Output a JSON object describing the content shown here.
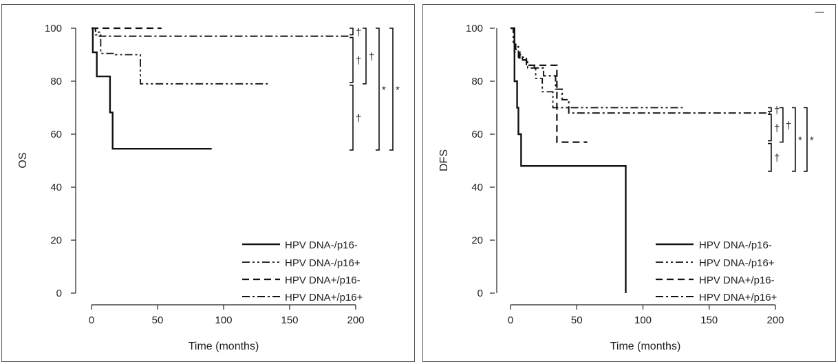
{
  "chart_data": [
    {
      "type": "line",
      "subtype": "kaplan-meier",
      "title": "",
      "xlabel": "Time (months)",
      "ylabel": "OS",
      "xlim": [
        0,
        200
      ],
      "ylim": [
        0,
        100
      ],
      "xticks": [
        0,
        50,
        100,
        150,
        200
      ],
      "yticks": [
        0,
        20,
        40,
        60,
        80,
        100
      ],
      "series": [
        {
          "name": "HPV DNA-/p16-",
          "style": "solid",
          "x": [
            0,
            1,
            1,
            4,
            4,
            14,
            14,
            16,
            16,
            91
          ],
          "y": [
            100,
            100,
            90.9,
            90.9,
            81.8,
            81.8,
            68.2,
            68.2,
            54.5,
            54.5
          ]
        },
        {
          "name": "HPV DNA-/p16+",
          "style": "dashdotdot",
          "x": [
            0,
            3,
            3,
            7,
            7,
            18,
            18,
            37,
            37,
            135
          ],
          "y": [
            100,
            100,
            97.5,
            97.5,
            90.5,
            90.5,
            90,
            90,
            79,
            79
          ]
        },
        {
          "name": "HPV DNA+/p16-",
          "style": "dashed",
          "x": [
            0,
            53
          ],
          "y": [
            100,
            100
          ]
        },
        {
          "name": "HPV DNA+/p16+",
          "style": "dashdot",
          "x": [
            0,
            3,
            3,
            6,
            6,
            196
          ],
          "y": [
            100,
            100,
            98.5,
            98.5,
            97,
            97
          ]
        }
      ],
      "brackets": [
        {
          "from": 100,
          "to": 97,
          "label": "†"
        },
        {
          "from": 97,
          "to": 79,
          "label": "†"
        },
        {
          "from": 79,
          "to": 54,
          "label": "†"
        },
        {
          "from": 100,
          "to": 79,
          "label": "†"
        },
        {
          "from": 100,
          "to": 54,
          "label": "*"
        },
        {
          "from": 100,
          "to": 54,
          "label": "*"
        }
      ]
    },
    {
      "type": "line",
      "subtype": "kaplan-meier",
      "title": "",
      "xlabel": "Time (months)",
      "ylabel": "DFS",
      "xlim": [
        0,
        200
      ],
      "ylim": [
        0,
        100
      ],
      "xticks": [
        0,
        50,
        100,
        150,
        200
      ],
      "yticks": [
        0,
        20,
        40,
        60,
        80,
        100
      ],
      "series": [
        {
          "name": "HPV DNA-/p16-",
          "style": "solid",
          "x": [
            0,
            3,
            3,
            5,
            5,
            6,
            6,
            8,
            8,
            87,
            87
          ],
          "y": [
            100,
            100,
            80,
            80,
            70,
            70,
            60,
            60,
            48,
            48,
            0
          ]
        },
        {
          "name": "HPV DNA-/p16+",
          "style": "dashdotdot",
          "x": [
            0,
            2,
            2,
            4,
            4,
            6,
            6,
            9,
            9,
            13,
            13,
            19,
            19,
            24,
            24,
            32,
            32,
            130
          ],
          "y": [
            100,
            100,
            94,
            94,
            92,
            92,
            90,
            90,
            88,
            88,
            85,
            85,
            81,
            81,
            76,
            76,
            70,
            70
          ]
        },
        {
          "name": "HPV DNA+/p16-",
          "style": "dashed",
          "x": [
            0,
            3,
            3,
            7,
            7,
            12,
            12,
            15,
            15,
            35,
            35,
            58
          ],
          "y": [
            100,
            100,
            91,
            91,
            88,
            88,
            86,
            86,
            86,
            86,
            57,
            57
          ]
        },
        {
          "name": "HPV DNA+/p16+",
          "style": "dashdot",
          "x": [
            0,
            3,
            3,
            6,
            6,
            12,
            12,
            18,
            18,
            25,
            25,
            34,
            34,
            39,
            39,
            44,
            44,
            196
          ],
          "y": [
            100,
            100,
            93,
            93,
            89,
            89,
            86,
            86,
            85,
            85,
            82,
            82,
            77,
            77,
            73,
            73,
            68,
            68
          ]
        }
      ],
      "brackets": [
        {
          "from": 70,
          "to": 68,
          "label": "†"
        },
        {
          "from": 68,
          "to": 57,
          "label": "†"
        },
        {
          "from": 57,
          "to": 46,
          "label": "†"
        },
        {
          "from": 70,
          "to": 57,
          "label": "†"
        },
        {
          "from": 70,
          "to": 46,
          "label": "*"
        },
        {
          "from": 70,
          "to": 46,
          "label": "*"
        }
      ]
    }
  ]
}
